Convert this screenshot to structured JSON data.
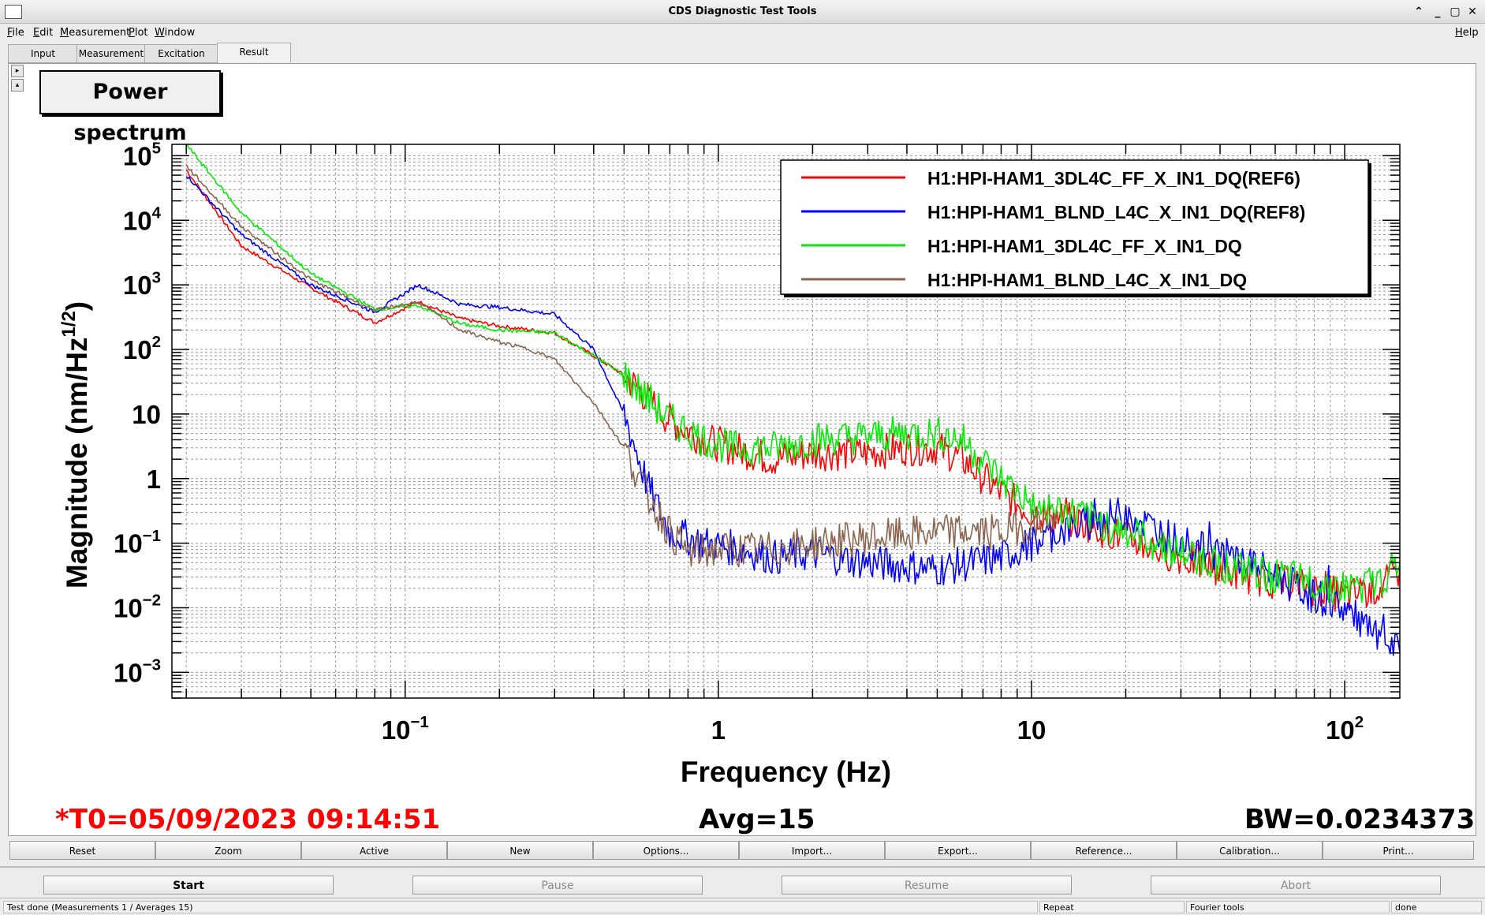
{
  "window": {
    "title": "CDS Diagnostic Test Tools"
  },
  "menubar": {
    "items": [
      "File",
      "Edit",
      "Measurement",
      "Plot",
      "Window"
    ],
    "help": "Help"
  },
  "tabs": [
    {
      "label": "Input",
      "active": false
    },
    {
      "label": "Measurement",
      "active": false
    },
    {
      "label": "Excitation",
      "active": false
    },
    {
      "label": "Result",
      "active": true
    }
  ],
  "panel": {
    "title": "Power spectrum"
  },
  "chart_data": {
    "type": "line",
    "xlabel": "Frequency (Hz)",
    "ylabel": "Magnitude (nm/Hz^(1/2))",
    "xscale": "log",
    "yscale": "log",
    "xlim": [
      0.018,
      150
    ],
    "ylim": [
      0.0004,
      150000
    ],
    "x_ticks": [
      "10^-1",
      "1",
      "10",
      "10^2"
    ],
    "y_ticks": [
      "10^5",
      "10^4",
      "10^3",
      "10^2",
      "10",
      "1",
      "10^-1",
      "10^-2",
      "10^-3"
    ],
    "grid": true,
    "legend_position": "top-right",
    "series": [
      {
        "name": "H1:HPI-HAM1_3DL4C_FF_X_IN1_DQ(REF6)",
        "color": "#ff0000",
        "points": [
          [
            0.02,
            60000
          ],
          [
            0.03,
            4000
          ],
          [
            0.05,
            900
          ],
          [
            0.08,
            260
          ],
          [
            0.11,
            550
          ],
          [
            0.15,
            300
          ],
          [
            0.2,
            230
          ],
          [
            0.3,
            180
          ],
          [
            0.4,
            80
          ],
          [
            0.5,
            40
          ],
          [
            0.7,
            8
          ],
          [
            0.9,
            4
          ],
          [
            1.1,
            3
          ],
          [
            1.5,
            2
          ],
          [
            2,
            2.5
          ],
          [
            3,
            2.5
          ],
          [
            4,
            3
          ],
          [
            5,
            3
          ],
          [
            6,
            2
          ],
          [
            8,
            0.6
          ],
          [
            10,
            0.3
          ],
          [
            15,
            0.2
          ],
          [
            20,
            0.12
          ],
          [
            30,
            0.06
          ],
          [
            50,
            0.03
          ],
          [
            80,
            0.02
          ],
          [
            100,
            0.015
          ],
          [
            130,
            0.02
          ],
          [
            150,
            0.04
          ]
        ]
      },
      {
        "name": "H1:HPI-HAM1_BLND_L4C_X_IN1_DQ(REF8)",
        "color": "#0000ff",
        "points": [
          [
            0.02,
            50000
          ],
          [
            0.03,
            6000
          ],
          [
            0.05,
            1000
          ],
          [
            0.08,
            380
          ],
          [
            0.11,
            1000
          ],
          [
            0.15,
            500
          ],
          [
            0.2,
            450
          ],
          [
            0.3,
            350
          ],
          [
            0.4,
            100
          ],
          [
            0.5,
            10
          ],
          [
            0.6,
            0.7
          ],
          [
            0.7,
            0.15
          ],
          [
            0.9,
            0.1
          ],
          [
            1.2,
            0.08
          ],
          [
            1.5,
            0.06
          ],
          [
            2,
            0.07
          ],
          [
            3,
            0.05
          ],
          [
            5,
            0.04
          ],
          [
            8,
            0.06
          ],
          [
            10,
            0.1
          ],
          [
            12,
            0.15
          ],
          [
            15,
            0.2
          ],
          [
            20,
            0.3
          ],
          [
            30,
            0.1
          ],
          [
            50,
            0.05
          ],
          [
            80,
            0.015
          ],
          [
            100,
            0.01
          ],
          [
            130,
            0.003
          ],
          [
            150,
            0.002
          ]
        ]
      },
      {
        "name": "H1:HPI-HAM1_3DL4C_FF_X_IN1_DQ",
        "color": "#00ee00",
        "points": [
          [
            0.02,
            150000
          ],
          [
            0.03,
            13000
          ],
          [
            0.05,
            1500
          ],
          [
            0.08,
            420
          ],
          [
            0.11,
            480
          ],
          [
            0.15,
            250
          ],
          [
            0.2,
            200
          ],
          [
            0.3,
            180
          ],
          [
            0.4,
            80
          ],
          [
            0.5,
            40
          ],
          [
            0.7,
            8
          ],
          [
            0.9,
            4
          ],
          [
            1.1,
            3
          ],
          [
            1.5,
            3
          ],
          [
            2,
            4
          ],
          [
            3,
            4.5
          ],
          [
            4,
            5
          ],
          [
            5,
            5
          ],
          [
            6,
            4
          ],
          [
            8,
            1
          ],
          [
            10,
            0.4
          ],
          [
            15,
            0.25
          ],
          [
            20,
            0.15
          ],
          [
            30,
            0.07
          ],
          [
            50,
            0.035
          ],
          [
            80,
            0.025
          ],
          [
            100,
            0.02
          ],
          [
            130,
            0.025
          ],
          [
            150,
            0.05
          ]
        ]
      },
      {
        "name": "H1:HPI-HAM1_BLND_L4C_X_IN1_DQ",
        "color": "#8b6550",
        "points": [
          [
            0.02,
            70000
          ],
          [
            0.03,
            8000
          ],
          [
            0.05,
            1200
          ],
          [
            0.08,
            400
          ],
          [
            0.11,
            550
          ],
          [
            0.15,
            200
          ],
          [
            0.2,
            130
          ],
          [
            0.25,
            100
          ],
          [
            0.3,
            70
          ],
          [
            0.4,
            15
          ],
          [
            0.5,
            3
          ],
          [
            0.6,
            0.5
          ],
          [
            0.7,
            0.15
          ],
          [
            0.8,
            0.07
          ],
          [
            1,
            0.08
          ],
          [
            1.5,
            0.08
          ],
          [
            2,
            0.1
          ],
          [
            3,
            0.12
          ],
          [
            5,
            0.15
          ],
          [
            8,
            0.15
          ],
          [
            10,
            0.2
          ],
          [
            12,
            0.2
          ]
        ]
      }
    ]
  },
  "status_line": {
    "t0": "*T0=05/09/2023 09:14:51",
    "avg": "Avg=15",
    "bw": "BW=0.0234373"
  },
  "plot_buttons": [
    "Reset",
    "Zoom",
    "Active",
    "New",
    "Options...",
    "Import...",
    "Export...",
    "Reference...",
    "Calibration...",
    "Print..."
  ],
  "control_buttons": {
    "start": "Start",
    "pause": "Pause",
    "resume": "Resume",
    "abort": "Abort"
  },
  "statusbar": {
    "message": "Test done (Measurements 1 / Averages 15)",
    "mode": "Repeat",
    "tool": "Fourier tools",
    "state": "done"
  },
  "colors": {
    "t0_text": "#ff0000",
    "plot_frame": "#000000",
    "grid": "#9a9a9a"
  }
}
